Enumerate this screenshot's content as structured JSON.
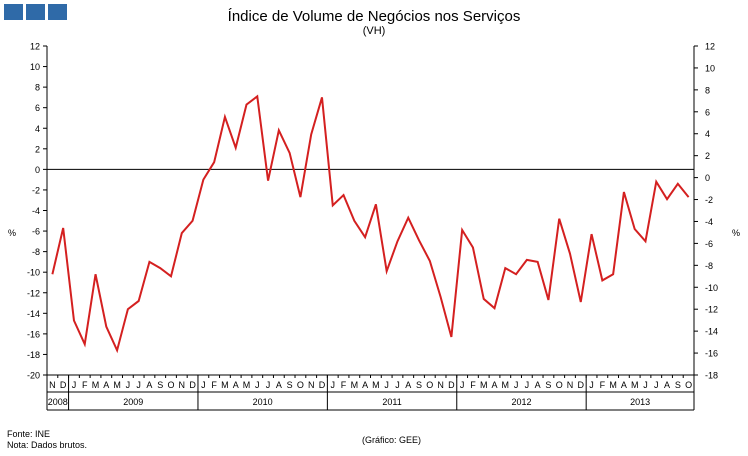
{
  "header": {
    "title": "Índice de Volume de Negócios nos Serviços",
    "subtitle": "(VH)"
  },
  "footer": {
    "source": "Fonte: INE",
    "note": "Nota: Dados brutos.",
    "credit": "(Gráfico: GEE)"
  },
  "chart_data": {
    "type": "line",
    "title": "Índice de Volume de Negócios nos Serviços",
    "subtitle": "(VH)",
    "ylabel_left": "%",
    "ylabel_right": "%",
    "left_axis": {
      "min": -20,
      "max": 12,
      "step": 2
    },
    "right_axis": {
      "min": -18,
      "max": 12,
      "step": 2
    },
    "series_color": "#d42020",
    "month_labels": [
      "N",
      "D",
      "J",
      "F",
      "M",
      "A",
      "M",
      "J",
      "J",
      "A",
      "S",
      "O",
      "N",
      "D",
      "J",
      "F",
      "M",
      "A",
      "M",
      "J",
      "J",
      "A",
      "S",
      "O",
      "N",
      "D",
      "J",
      "F",
      "M",
      "A",
      "M",
      "J",
      "J",
      "A",
      "S",
      "O",
      "N",
      "D",
      "J",
      "F",
      "M",
      "A",
      "M",
      "J",
      "J",
      "A",
      "S",
      "O",
      "N",
      "D",
      "J",
      "F",
      "M",
      "A",
      "M",
      "J",
      "J",
      "A",
      "S",
      "O"
    ],
    "year_labels": [
      {
        "label": "2008",
        "start": 0,
        "end": 1
      },
      {
        "label": "2009",
        "start": 2,
        "end": 13
      },
      {
        "label": "2010",
        "start": 14,
        "end": 25
      },
      {
        "label": "2011",
        "start": 26,
        "end": 37
      },
      {
        "label": "2012",
        "start": 38,
        "end": 49
      },
      {
        "label": "2013",
        "start": 50,
        "end": 59
      }
    ],
    "series": [
      {
        "name": "VH",
        "values": [
          -10.2,
          -5.7,
          -14.7,
          -17.0,
          -10.2,
          -15.3,
          -17.6,
          -13.6,
          -12.8,
          -9.0,
          -9.6,
          -10.4,
          -6.2,
          -5.0,
          -1.0,
          0.7,
          5.1,
          2.1,
          6.3,
          7.1,
          -1.1,
          3.8,
          1.6,
          -2.7,
          3.4,
          7.0,
          -3.5,
          -2.5,
          -5.0,
          -6.6,
          -3.4,
          -9.9,
          -7.0,
          -4.7,
          -6.9,
          -8.9,
          -12.4,
          -16.3,
          -5.9,
          -7.6,
          -12.6,
          -13.5,
          -9.6,
          -10.2,
          -8.8,
          -9.0,
          -12.7,
          -4.8,
          -8.2,
          -12.9,
          -6.3,
          -10.8,
          -10.2,
          -2.2,
          -5.8,
          -7.0,
          -1.2,
          -2.9,
          -1.4,
          -2.7
        ]
      }
    ]
  }
}
